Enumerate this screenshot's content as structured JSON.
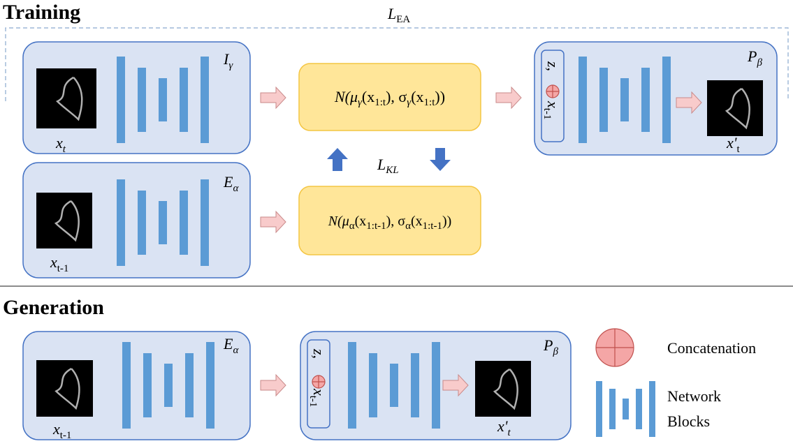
{
  "training": {
    "title": "Training",
    "loss_ea": {
      "base": "L",
      "sub": "EA"
    },
    "loss_kl": {
      "base": "L",
      "sub": "KL"
    },
    "inference_net": {
      "label": {
        "base": "I",
        "sub": "γ"
      },
      "input": {
        "base": "x",
        "sub": "t"
      }
    },
    "encoder": {
      "label": {
        "base": "E",
        "sub": "α"
      },
      "input": {
        "base": "x",
        "sub": "t-1"
      }
    },
    "posterior": [
      "N(μ",
      "γ",
      "(x",
      "1:t",
      "), σ",
      "γ",
      "(x",
      "1:t",
      "))"
    ],
    "prior": [
      "N(μ",
      "α",
      "(x",
      "1:t-1",
      "), σ",
      "α",
      "(x",
      "1:t-1",
      "))"
    ],
    "decoder": {
      "label": {
        "base": "P",
        "sub": "β"
      },
      "condition": {
        "z": "z,",
        "x": {
          "base": "x",
          "sub": "t-1"
        }
      },
      "output": {
        "base": "x'",
        "sub": "t"
      }
    }
  },
  "generation": {
    "title": "Generation",
    "encoder": {
      "label": {
        "base": "E",
        "sub": "α"
      },
      "input": {
        "base": "x",
        "sub": "t-1"
      }
    },
    "decoder": {
      "label": {
        "base": "P",
        "sub": "β"
      },
      "condition": {
        "z": "z,",
        "x": {
          "base": "x",
          "sub": "t-1"
        }
      },
      "output": {
        "base": "x'",
        "sub": "t"
      }
    }
  },
  "legend": {
    "concatenation": "Concatenation",
    "network_blocks": [
      "Network",
      "Blocks"
    ]
  }
}
